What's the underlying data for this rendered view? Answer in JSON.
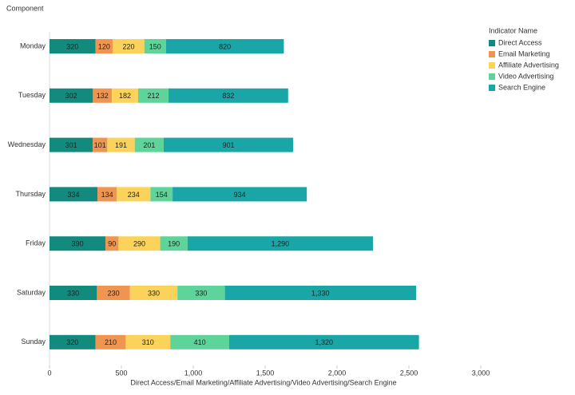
{
  "chart_data": {
    "type": "stacked-bar-horizontal",
    "title": "Component",
    "x_label": "Direct Access/Email Marketing/Affiliate Advertising/Video Advertising/Search Engine",
    "legend_title": "Indicator Name",
    "legend_position": "right",
    "categories": [
      "Monday",
      "Tuesday",
      "Wednesday",
      "Thursday",
      "Friday",
      "Saturday",
      "Sunday"
    ],
    "series": [
      {
        "name": "Direct Access",
        "color": "#138a7e",
        "values": [
          320,
          302,
          301,
          334,
          390,
          330,
          320
        ]
      },
      {
        "name": "Email Marketing",
        "color": "#f0954f",
        "values": [
          120,
          132,
          101,
          134,
          90,
          230,
          210
        ]
      },
      {
        "name": "Affiliate Advertising",
        "color": "#fbd25a",
        "values": [
          220,
          182,
          191,
          234,
          290,
          330,
          310
        ]
      },
      {
        "name": "Video Advertising",
        "color": "#5ed49a",
        "values": [
          150,
          212,
          201,
          154,
          190,
          330,
          410
        ]
      },
      {
        "name": "Search Engine",
        "color": "#1aa6a6",
        "values": [
          820,
          832,
          901,
          934,
          1290,
          1330,
          1320
        ],
        "value_labels": [
          "820",
          "832",
          "901",
          "934",
          "1,290",
          "1,330",
          "1,320"
        ]
      }
    ],
    "xlim": [
      0,
      3000
    ],
    "xticks": [
      0,
      500,
      {
        "value": 1000,
        "label": "1,000"
      },
      {
        "value": 1500,
        "label": "1,500"
      },
      {
        "value": 2000,
        "label": "2,000"
      },
      {
        "value": 2500,
        "label": "2,500"
      },
      {
        "value": 3000,
        "label": "3,000"
      }
    ]
  }
}
